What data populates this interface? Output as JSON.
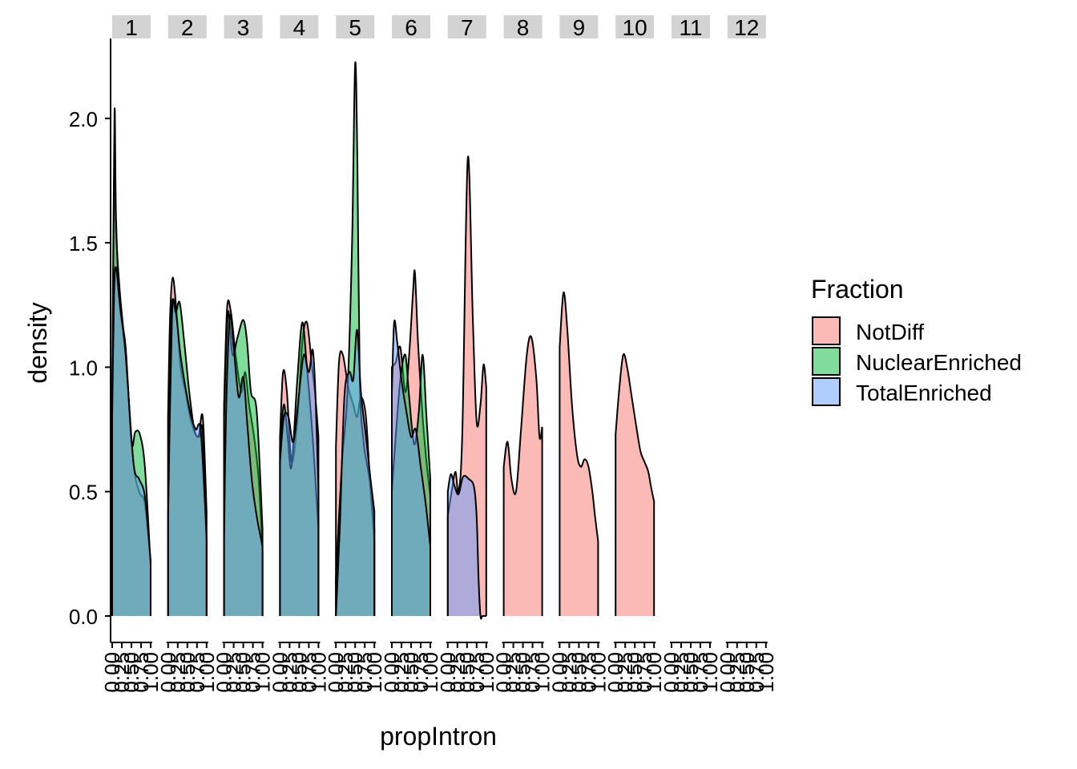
{
  "chart_data": {
    "type": "area",
    "subtype": "faceted density plot",
    "xlabel": "propIntron",
    "ylabel": "density",
    "ylim": [
      -0.1,
      2.3
    ],
    "yticks": [
      0.0,
      0.5,
      1.0,
      1.5,
      2.0
    ],
    "ytick_labels": [
      "0.0",
      "0.5",
      "1.0",
      "1.5",
      "2.0"
    ],
    "xticks": [
      0.0,
      0.25,
      0.5,
      0.75,
      1.0
    ],
    "xtick_labels": [
      "0.00",
      "0.25",
      "0.50",
      "0.75",
      "1.00"
    ],
    "facets": [
      "1",
      "2",
      "3",
      "4",
      "5",
      "6",
      "7",
      "8",
      "9",
      "10",
      "11",
      "12"
    ],
    "legend": {
      "title": "Fraction",
      "position": "right",
      "entries": [
        {
          "name": "NotDiff",
          "color": "#F8766D"
        },
        {
          "name": "NuclearEnriched",
          "color": "#00BA38"
        },
        {
          "name": "TotalEnriched",
          "color": "#619CFF"
        }
      ]
    },
    "fill_alpha": 0.5,
    "panels": [
      {
        "facet": "1",
        "series": [
          {
            "name": "NotDiff",
            "x": [
              0,
              0.06,
              0.1,
              0.2,
              0.35,
              0.55,
              0.7,
              0.85,
              1.0
            ],
            "y": [
              0.85,
              1.85,
              1.55,
              1.3,
              1.05,
              0.62,
              0.5,
              0.45,
              0.22
            ]
          },
          {
            "name": "NuclearEnriched",
            "x": [
              0,
              0.06,
              0.1,
              0.2,
              0.35,
              0.5,
              0.6,
              0.72,
              0.85,
              1.0
            ],
            "y": [
              0.9,
              2.02,
              1.6,
              1.25,
              1.08,
              0.7,
              0.74,
              0.73,
              0.6,
              0.2
            ]
          },
          {
            "name": "TotalEnriched",
            "x": [
              0,
              0.05,
              0.1,
              0.2,
              0.35,
              0.55,
              0.7,
              0.85,
              1.0
            ],
            "y": [
              0.8,
              1.3,
              1.4,
              1.25,
              1.05,
              0.62,
              0.55,
              0.48,
              0.22
            ]
          }
        ]
      },
      {
        "facet": "2",
        "series": [
          {
            "name": "NotDiff",
            "x": [
              0,
              0.05,
              0.12,
              0.22,
              0.32,
              0.45,
              0.6,
              0.78,
              0.9,
              1.0
            ],
            "y": [
              0.82,
              1.2,
              1.36,
              1.22,
              1.0,
              0.9,
              0.78,
              0.72,
              0.8,
              0.42
            ]
          },
          {
            "name": "NuclearEnriched",
            "x": [
              0,
              0.1,
              0.2,
              0.3,
              0.42,
              0.55,
              0.68,
              0.8,
              0.9,
              1.0
            ],
            "y": [
              0.8,
              1.25,
              1.22,
              1.26,
              1.1,
              0.9,
              0.75,
              0.72,
              0.74,
              0.28
            ]
          },
          {
            "name": "TotalEnriched",
            "x": [
              0,
              0.1,
              0.2,
              0.32,
              0.45,
              0.6,
              0.72,
              0.85,
              1.0
            ],
            "y": [
              0.4,
              1.2,
              1.22,
              1.05,
              0.92,
              0.8,
              0.75,
              0.74,
              0.32
            ]
          }
        ]
      },
      {
        "facet": "3",
        "series": [
          {
            "name": "NotDiff",
            "x": [
              0,
              0.08,
              0.18,
              0.3,
              0.45,
              0.55,
              0.65,
              0.78,
              0.9,
              1.0
            ],
            "y": [
              0.85,
              1.24,
              1.22,
              1.05,
              0.9,
              0.98,
              0.85,
              0.72,
              0.55,
              0.26
            ]
          },
          {
            "name": "NuclearEnriched",
            "x": [
              0,
              0.1,
              0.22,
              0.35,
              0.5,
              0.6,
              0.7,
              0.85,
              1.0
            ],
            "y": [
              0.8,
              1.22,
              1.05,
              1.12,
              1.19,
              1.1,
              0.9,
              0.82,
              0.35
            ]
          },
          {
            "name": "TotalEnriched",
            "x": [
              0,
              0.05,
              0.15,
              0.25,
              0.38,
              0.5,
              0.6,
              0.72,
              0.85,
              1.0
            ],
            "y": [
              0.3,
              0.8,
              1.2,
              1.08,
              0.88,
              0.96,
              0.78,
              0.55,
              0.4,
              0.28
            ]
          }
        ]
      },
      {
        "facet": "4",
        "series": [
          {
            "name": "NotDiff",
            "x": [
              0,
              0.08,
              0.18,
              0.3,
              0.45,
              0.58,
              0.7,
              0.82,
              0.92,
              1.0
            ],
            "y": [
              0.72,
              0.98,
              0.9,
              0.62,
              0.78,
              1.1,
              1.18,
              1.02,
              0.88,
              0.72
            ]
          },
          {
            "name": "NuclearEnriched",
            "x": [
              0,
              0.1,
              0.2,
              0.3,
              0.45,
              0.58,
              0.7,
              0.82,
              0.9,
              1.0
            ],
            "y": [
              0.68,
              0.85,
              0.72,
              0.6,
              0.95,
              1.18,
              1.0,
              0.78,
              0.6,
              0.35
            ]
          },
          {
            "name": "TotalEnriched",
            "x": [
              0,
              0.1,
              0.22,
              0.35,
              0.5,
              0.62,
              0.75,
              0.85,
              0.92,
              1.0
            ],
            "y": [
              0.62,
              0.8,
              0.8,
              0.7,
              0.9,
              1.05,
              0.98,
              1.07,
              0.9,
              0.5
            ]
          }
        ]
      },
      {
        "facet": "5",
        "series": [
          {
            "name": "NotDiff",
            "x": [
              0,
              0.08,
              0.18,
              0.32,
              0.45,
              0.55,
              0.65,
              0.78,
              0.9,
              1.0
            ],
            "y": [
              0.68,
              1.02,
              1.05,
              0.92,
              0.85,
              0.8,
              0.88,
              0.8,
              0.5,
              0.3
            ]
          },
          {
            "name": "NuclearEnriched",
            "x": [
              0,
              0.15,
              0.3,
              0.42,
              0.5,
              0.56,
              0.62,
              0.72,
              0.82,
              0.92,
              1.0
            ],
            "y": [
              0.15,
              0.6,
              0.9,
              1.5,
              2.22,
              1.8,
              0.95,
              0.7,
              0.6,
              0.5,
              0.35
            ]
          },
          {
            "name": "TotalEnriched",
            "x": [
              0,
              0.1,
              0.22,
              0.35,
              0.45,
              0.55,
              0.65,
              0.78,
              0.9,
              1.0
            ],
            "y": [
              0.0,
              0.35,
              0.88,
              0.98,
              0.95,
              1.15,
              0.9,
              0.72,
              0.55,
              0.42
            ]
          }
        ]
      },
      {
        "facet": "6",
        "series": [
          {
            "name": "NotDiff",
            "x": [
              0,
              0.1,
              0.22,
              0.35,
              0.45,
              0.55,
              0.6,
              0.68,
              0.8,
              0.9,
              1.0
            ],
            "y": [
              1.0,
              1.02,
              1.08,
              0.9,
              1.05,
              1.3,
              1.38,
              1.1,
              0.8,
              0.62,
              0.48
            ]
          },
          {
            "name": "NuclearEnriched",
            "x": [
              0,
              0.1,
              0.22,
              0.35,
              0.45,
              0.58,
              0.7,
              0.8,
              0.9,
              1.0
            ],
            "y": [
              0.5,
              0.72,
              0.95,
              1.05,
              0.88,
              0.69,
              0.82,
              1.05,
              0.8,
              0.55
            ]
          },
          {
            "name": "TotalEnriched",
            "x": [
              0,
              0.06,
              0.14,
              0.25,
              0.38,
              0.5,
              0.62,
              0.75,
              0.88,
              1.0
            ],
            "y": [
              0.9,
              1.18,
              1.1,
              0.95,
              0.82,
              0.72,
              0.75,
              0.6,
              0.45,
              0.28
            ]
          }
        ]
      },
      {
        "facet": "7",
        "series": [
          {
            "name": "NotDiff",
            "x": [
              0,
              0.1,
              0.2,
              0.28,
              0.38,
              0.52,
              0.65,
              0.75,
              0.85,
              0.93,
              1.0
            ],
            "y": [
              0.4,
              0.5,
              0.58,
              0.5,
              0.75,
              1.84,
              1.2,
              0.78,
              0.85,
              1.01,
              0.92
            ]
          },
          {
            "name": "TotalEnriched",
            "x": [
              0,
              0.08,
              0.18,
              0.28,
              0.4,
              0.55,
              0.68,
              0.75,
              0.8,
              0.85,
              0.9,
              1.0
            ],
            "y": [
              0.5,
              0.57,
              0.52,
              0.49,
              0.56,
              0.55,
              0.52,
              0.4,
              0.15,
              0.0,
              0.0,
              0.0
            ]
          }
        ]
      },
      {
        "facet": "8",
        "series": [
          {
            "name": "NotDiff",
            "x": [
              0,
              0.1,
              0.2,
              0.32,
              0.45,
              0.6,
              0.72,
              0.85,
              0.93,
              1.0
            ],
            "y": [
              0.6,
              0.7,
              0.55,
              0.5,
              0.75,
              1.05,
              1.12,
              0.95,
              0.72,
              0.76
            ]
          }
        ]
      },
      {
        "facet": "9",
        "series": [
          {
            "name": "NotDiff",
            "x": [
              0,
              0.1,
              0.2,
              0.32,
              0.45,
              0.55,
              0.65,
              0.75,
              0.85,
              0.92,
              1.0
            ],
            "y": [
              1.08,
              1.3,
              1.15,
              0.85,
              0.65,
              0.6,
              0.63,
              0.6,
              0.5,
              0.4,
              0.3
            ]
          }
        ]
      },
      {
        "facet": "10",
        "series": [
          {
            "name": "NotDiff",
            "x": [
              0,
              0.1,
              0.2,
              0.3,
              0.42,
              0.55,
              0.65,
              0.75,
              0.85,
              0.92,
              1.0
            ],
            "y": [
              0.73,
              0.92,
              1.05,
              1.0,
              0.88,
              0.75,
              0.66,
              0.62,
              0.58,
              0.52,
              0.46
            ]
          }
        ]
      },
      {
        "facet": "11",
        "series": []
      },
      {
        "facet": "12",
        "series": []
      }
    ]
  }
}
